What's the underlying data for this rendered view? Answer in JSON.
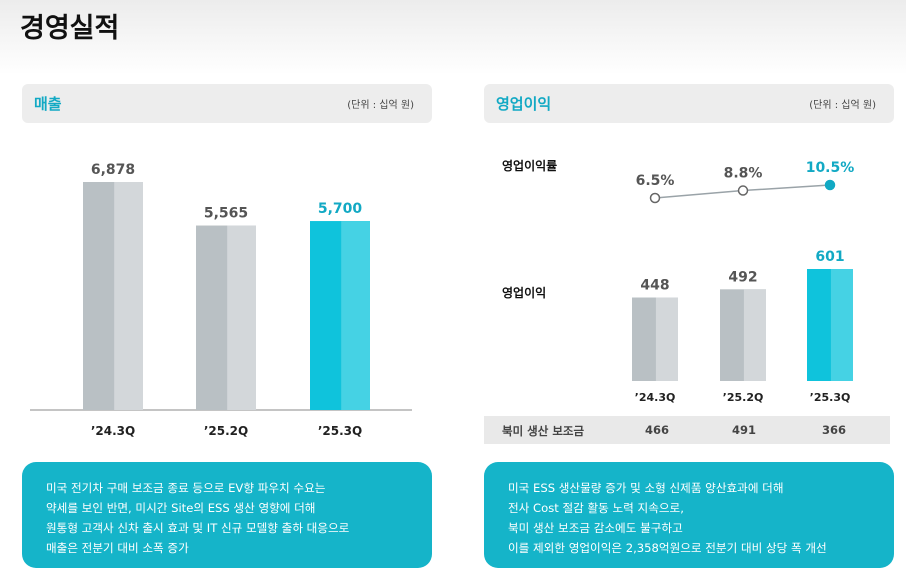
{
  "page": {
    "title": "경영실적"
  },
  "revenue": {
    "title": "매출",
    "unit": "(단위 : 십억 원)",
    "summary": [
      "미국 전기차 구매 보조금 종료 등으로 EV향 파우치 수요는",
      "약세를 보인 반면, 미시간 Site의 ESS 생산 영향에 더해",
      "원통형 고객사 신차 출시 효과 및 IT 신규 모델향 출하 대응으로",
      "매출은 전분기 대비 소폭 증가"
    ]
  },
  "operating": {
    "title": "영업이익",
    "unit": "(단위 : 십억 원)",
    "margin_label": "영업이익률",
    "profit_label": "영업이익",
    "subsidy_label": "북미 생산 보조금",
    "subsidy_values": [
      "466",
      "491",
      "366"
    ],
    "summary": [
      "미국 ESS 생산물량 증가 및 소형 신제품 양산효과에 더해",
      "전사 Cost 절감 활동 노력 지속으로,",
      "북미 생산 보조금 감소에도 불구하고",
      "이를 제외한 영업이익은 2,358억원으로 전분기 대비 상당 폭 개선"
    ]
  },
  "colors": {
    "accent": "#12a9c4",
    "bar_gray": "#b9c0c4",
    "bar_gray_light": "#d3d7da",
    "bar_teal": "#0fc3dc",
    "bar_teal_light": "#45d2e4",
    "summary_bg": "#15b4c9"
  },
  "chart_data": [
    {
      "type": "bar",
      "title": "매출",
      "categories": [
        "’24.3Q",
        "’25.2Q",
        "’25.3Q"
      ],
      "values": [
        6878,
        5565,
        5700
      ],
      "value_labels": [
        "6,878",
        "5,565",
        "5,700"
      ],
      "highlight_index": 2,
      "ylim": [
        0,
        6878
      ]
    },
    {
      "type": "bar",
      "title": "영업이익",
      "categories": [
        "’24.3Q",
        "’25.2Q",
        "’25.3Q"
      ],
      "values": [
        448,
        492,
        601
      ],
      "value_labels": [
        "448",
        "492",
        "601"
      ],
      "highlight_index": 2,
      "ylim": [
        0,
        601
      ]
    },
    {
      "type": "line",
      "title": "영업이익률",
      "categories": [
        "’24.3Q",
        "’25.2Q",
        "’25.3Q"
      ],
      "values": [
        6.5,
        8.8,
        10.5
      ],
      "value_labels": [
        "6.5%",
        "8.8%",
        "10.5%"
      ],
      "highlight_index": 2,
      "ylim": [
        6.5,
        10.5
      ]
    }
  ]
}
